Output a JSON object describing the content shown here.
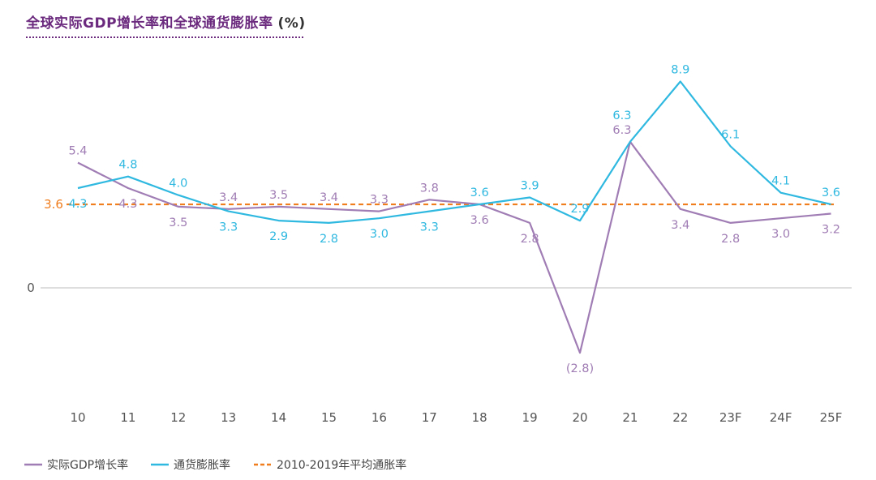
{
  "title": "全球实际GDP增长率和全球通货膨胀率",
  "title_unit": "(%)",
  "chart_data": {
    "type": "line",
    "categories": [
      "10",
      "11",
      "12",
      "13",
      "14",
      "15",
      "16",
      "17",
      "18",
      "19",
      "20",
      "21",
      "22",
      "23F",
      "24F",
      "25F"
    ],
    "series": [
      {
        "name": "实际GDP增长率",
        "color": "#a07db4",
        "values": [
          5.4,
          4.3,
          3.5,
          3.4,
          3.5,
          3.4,
          3.3,
          3.8,
          3.6,
          2.8,
          -2.8,
          6.3,
          3.4,
          2.8,
          3.0,
          3.2
        ],
        "labels": [
          "5.4",
          "4.3",
          "3.5",
          "3.4",
          "3.5",
          "3.4",
          "3.3",
          "3.8",
          "3.6",
          "2.8",
          "(2.8)",
          "6.3",
          "3.4",
          "2.8",
          "3.0",
          "3.2"
        ]
      },
      {
        "name": "通货膨胀率",
        "color": "#2fb8e0",
        "values": [
          4.3,
          4.8,
          4.0,
          3.3,
          2.9,
          2.8,
          3.0,
          3.3,
          3.6,
          3.9,
          2.9,
          6.3,
          8.9,
          6.1,
          4.1,
          3.6
        ],
        "labels": [
          "4.3",
          "4.8",
          "4.0",
          "3.3",
          "2.9",
          "2.8",
          "3.0",
          "3.3",
          "3.6",
          "3.9",
          "2.9",
          "6.3",
          "8.9",
          "6.1",
          "4.1",
          "3.6"
        ]
      }
    ],
    "reference_line": {
      "name": "2010-2019年平均通胀率",
      "value": 3.6,
      "label": "3.6",
      "color": "#f07d1e",
      "style": "dashed"
    },
    "y_ticks": [
      {
        "value": 0,
        "label": "0"
      }
    ],
    "ylim": [
      -5.2,
      10.5
    ],
    "grid": false,
    "legend": "bottom-left"
  }
}
